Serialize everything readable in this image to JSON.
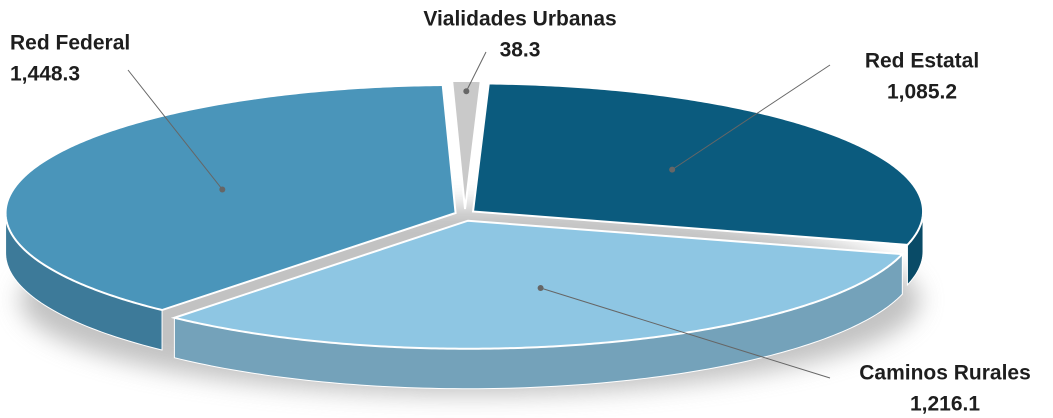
{
  "chart_data": {
    "type": "pie",
    "categories": [
      "Red Estatal",
      "Caminos Rurales",
      "Red Federal",
      "Vialidades Urbanas"
    ],
    "values": [
      1085.2,
      1216.1,
      1448.3,
      38.3
    ],
    "value_labels": [
      "1,085.2",
      "1,216.1",
      "1,448.3",
      "38.3"
    ],
    "colors": [
      "#0b5b7e",
      "#8ec6e3",
      "#4a95ba",
      "#c9c9c9"
    ]
  }
}
